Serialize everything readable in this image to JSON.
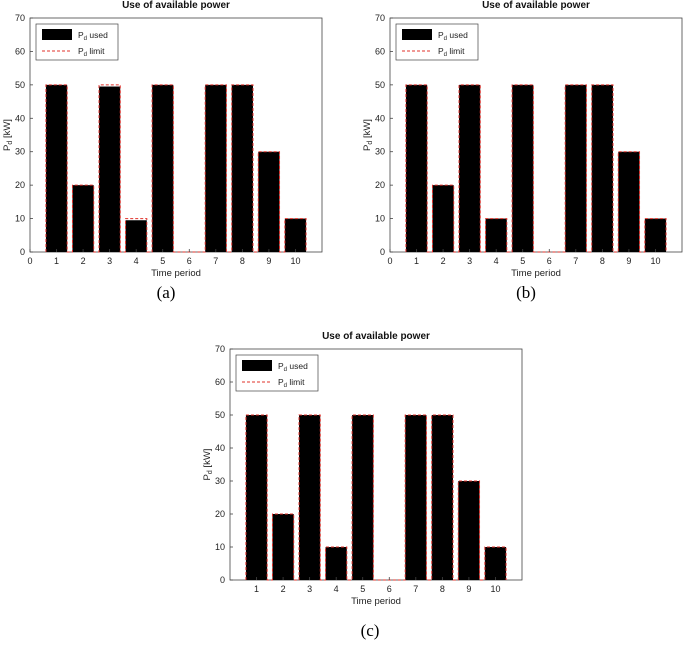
{
  "chart_data": [
    {
      "panel": "a",
      "type": "bar",
      "title": "Use of available power",
      "xlabel": "Time period",
      "ylabel": "P",
      "ylabel_sub": "d",
      "ylabel_unit": " [kW]",
      "xlim": [
        0,
        11
      ],
      "ylim": [
        0,
        70
      ],
      "xticks": [
        0,
        1,
        2,
        3,
        4,
        5,
        6,
        7,
        8,
        9,
        10
      ],
      "yticks": [
        0,
        10,
        20,
        30,
        40,
        50,
        60,
        70
      ],
      "categories": [
        1,
        2,
        3,
        4,
        5,
        6,
        7,
        8,
        9,
        10
      ],
      "series": [
        {
          "name_main": "P",
          "name_sub": "d",
          "name_rest": " used",
          "kind": "bar",
          "color": "#000000",
          "values": [
            50,
            20,
            49.5,
            9.5,
            50,
            0,
            50,
            50,
            30,
            10
          ]
        },
        {
          "name_main": "P",
          "name_sub": "d",
          "name_rest": " limit",
          "kind": "line",
          "color": "#e0302a",
          "values": [
            50,
            20,
            50,
            10,
            50,
            0,
            50,
            50,
            30,
            10
          ]
        }
      ],
      "legend_position": "top-left",
      "grid": false,
      "caption": "(a)"
    },
    {
      "panel": "b",
      "type": "bar",
      "title": "Use of available power",
      "xlabel": "Time period",
      "ylabel": "P",
      "ylabel_sub": "d",
      "ylabel_unit": " [kW]",
      "xlim": [
        0,
        11
      ],
      "ylim": [
        0,
        70
      ],
      "xticks": [
        0,
        1,
        2,
        3,
        4,
        5,
        6,
        7,
        8,
        9,
        10
      ],
      "yticks": [
        0,
        10,
        20,
        30,
        40,
        50,
        60,
        70
      ],
      "categories": [
        1,
        2,
        3,
        4,
        5,
        6,
        7,
        8,
        9,
        10
      ],
      "series": [
        {
          "name_main": "P",
          "name_sub": "d",
          "name_rest": " used",
          "kind": "bar",
          "color": "#000000",
          "values": [
            50,
            20,
            50,
            10,
            50,
            0,
            50,
            50,
            30,
            10
          ]
        },
        {
          "name_main": "P",
          "name_sub": "d",
          "name_rest": " limit",
          "kind": "line",
          "color": "#e0302a",
          "values": [
            50,
            20,
            50,
            10,
            50,
            0,
            50,
            50,
            30,
            10
          ]
        }
      ],
      "legend_position": "top-left",
      "grid": false,
      "caption": "(b)"
    },
    {
      "panel": "c",
      "type": "bar",
      "title": "Use of available power",
      "xlabel": "Time period",
      "ylabel": "P",
      "ylabel_sub": "d",
      "ylabel_unit": " [kW]",
      "xlim": [
        0,
        11
      ],
      "ylim": [
        0,
        70
      ],
      "xticks": [
        1,
        2,
        3,
        4,
        5,
        6,
        7,
        8,
        9,
        10
      ],
      "yticks": [
        0,
        10,
        20,
        30,
        40,
        50,
        60,
        70
      ],
      "categories": [
        1,
        2,
        3,
        4,
        5,
        6,
        7,
        8,
        9,
        10
      ],
      "series": [
        {
          "name_main": "P",
          "name_sub": "d",
          "name_rest": " used",
          "kind": "bar",
          "color": "#000000",
          "values": [
            50,
            20,
            50,
            10,
            50,
            0,
            50,
            50,
            30,
            10
          ]
        },
        {
          "name_main": "P",
          "name_sub": "d",
          "name_rest": " limit",
          "kind": "line",
          "color": "#e0302a",
          "values": [
            50,
            20,
            50,
            10,
            50,
            0,
            50,
            50,
            30,
            10
          ]
        }
      ],
      "legend_position": "top-left",
      "grid": false,
      "caption": "(c)"
    }
  ]
}
